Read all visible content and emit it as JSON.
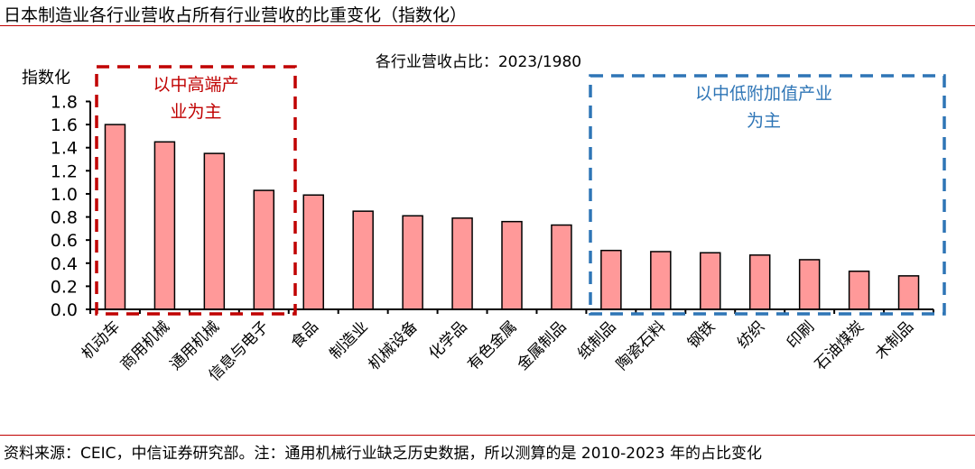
{
  "title": "日本制造业各行业营收占所有行业营收的比重变化（指数化）",
  "source": "资料来源：CEIC，中信证券研究部。注：通用机械行业缺乏历史数据，所以测算的是 2010-2023 年的占比变化",
  "chart_data": {
    "type": "bar",
    "title": "各行业营收占比：2023/1980",
    "ylabel": "指数化",
    "ylim": [
      0,
      1.8
    ],
    "yticks": [
      "0.0",
      "0.2",
      "0.4",
      "0.6",
      "0.8",
      "1.0",
      "1.2",
      "1.4",
      "1.6",
      "1.8"
    ],
    "categories": [
      "机动车",
      "商用机械",
      "通用机械",
      "信息与电子",
      "食品",
      "制造业",
      "机械设备",
      "化学品",
      "有色金属",
      "金属制品",
      "纸制品",
      "陶瓷石料",
      "钢铁",
      "纺织",
      "印刷",
      "石油煤炭",
      "木制品"
    ],
    "values": [
      1.6,
      1.45,
      1.35,
      1.03,
      0.99,
      0.85,
      0.81,
      0.79,
      0.76,
      0.73,
      0.51,
      0.5,
      0.49,
      0.47,
      0.43,
      0.33,
      0.29
    ],
    "bar_color": "#ff9999",
    "grid": false,
    "annotations": [
      {
        "text_lines": [
          "以中高端产",
          "业为主"
        ],
        "color": "#c00000",
        "first_category": "机动车",
        "last_category": "信息与电子"
      },
      {
        "text_lines": [
          "以中低附加值产业",
          "为主"
        ],
        "color": "#2e75b6",
        "first_category": "纸制品",
        "last_category": "木制品"
      }
    ]
  }
}
